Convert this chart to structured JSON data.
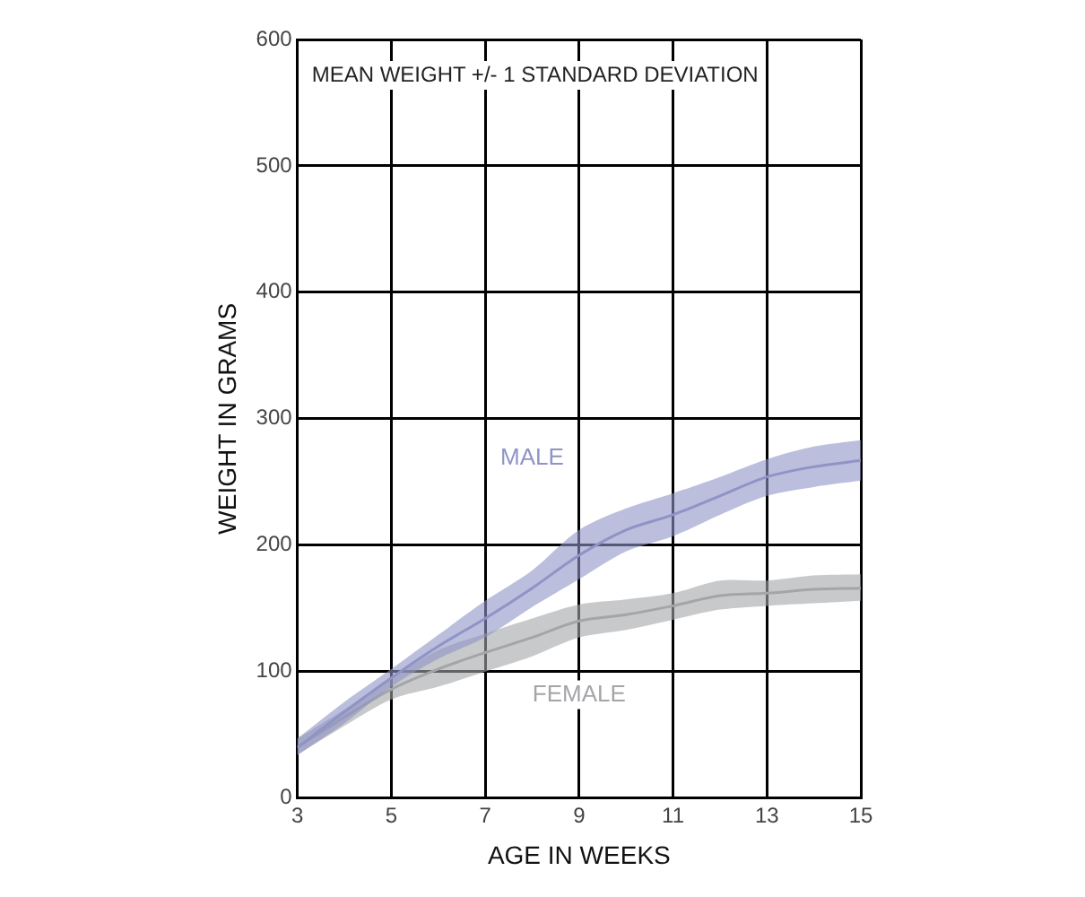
{
  "chart_data": {
    "type": "line",
    "xlabel": "AGE IN WEEKS",
    "ylabel": "WEIGHT IN GRAMS",
    "annotations": [
      "MEAN WEIGHT +/- 1 STANDARD DEVIATION"
    ],
    "x": [
      3,
      4,
      5,
      6,
      7,
      8,
      9,
      10,
      11,
      12,
      13,
      14,
      15
    ],
    "series": [
      {
        "name": "MALE",
        "color": "#8f93c6",
        "values": [
          40,
          68,
          95,
          120,
          142,
          166,
          192,
          212,
          224,
          239,
          254,
          262,
          267
        ],
        "lower": [
          34,
          59,
          88,
          110,
          127,
          151,
          173,
          195,
          207,
          224,
          239,
          246,
          251
        ],
        "upper": [
          47,
          76,
          102,
          129,
          156,
          180,
          212,
          229,
          241,
          254,
          268,
          278,
          283
        ]
      },
      {
        "name": "FEMALE",
        "color": "#a4a5a8",
        "values": [
          40,
          64,
          86,
          102,
          115,
          127,
          140,
          145,
          152,
          160,
          162,
          165,
          166
        ],
        "lower": [
          34,
          57,
          78,
          88,
          100,
          112,
          127,
          133,
          141,
          149,
          152,
          154,
          156
        ],
        "upper": [
          47,
          70,
          95,
          117,
          130,
          142,
          153,
          157,
          162,
          172,
          172,
          176,
          177
        ]
      }
    ],
    "xlim": [
      3,
      15
    ],
    "xticks": [
      3,
      5,
      7,
      9,
      11,
      13,
      15
    ],
    "ylim": [
      0,
      600
    ],
    "yticks": [
      0,
      100,
      200,
      300,
      400,
      500,
      600
    ],
    "grid": true,
    "legend": false,
    "marker": "none"
  }
}
